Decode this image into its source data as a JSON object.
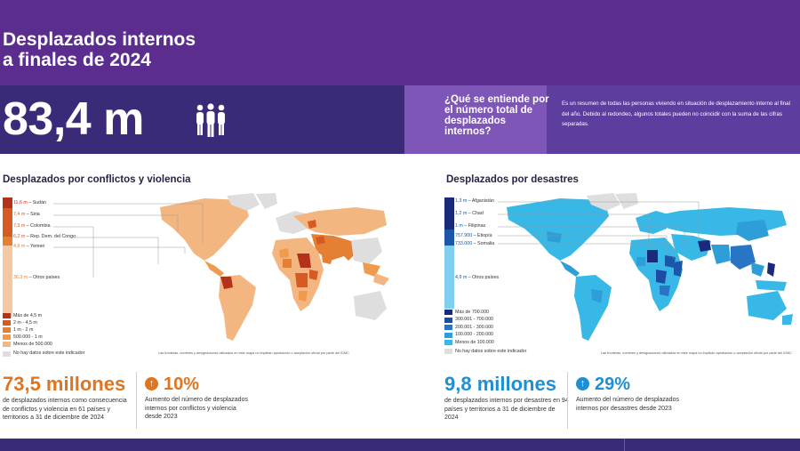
{
  "header": {
    "title_line1": "Desplazados internos",
    "title_line2": "a finales de 2024"
  },
  "total": {
    "value": "83,4 m",
    "icon": "people-group-icon"
  },
  "definition": {
    "question": "¿Qué se entiende por el número total de desplazados internos?",
    "answer": "Es un resumen de todas las personas viviendo en situación de desplazamiento interno al final del año. Debido al redondeo, algunos totales pueden no coincidir con la suma de las cifras separadas."
  },
  "conflict": {
    "title": "Desplazados por conflictos y violencia",
    "ranking": [
      {
        "value": "11,6 m",
        "country": "Sudán",
        "color": "#b5321a"
      },
      {
        "value": "7,4 m",
        "country": "Siria",
        "color": "#d65a24"
      },
      {
        "value": "7,3 m",
        "country": "Colombia",
        "color": "#d65a24"
      },
      {
        "value": "6,2 m",
        "country": "Rep. Dem. del Congo",
        "color": "#d65a24"
      },
      {
        "value": "4,8 m",
        "country": "Yemen",
        "color": "#e47f33"
      },
      {
        "value": "36,3 m",
        "country": "Otros países",
        "color": "#f6c7a3"
      }
    ],
    "legend": [
      {
        "label": "Más de 4,5 m",
        "color": "#b5321a"
      },
      {
        "label": "2 m - 4,5 m",
        "color": "#d65a24"
      },
      {
        "label": "1 m - 2 m",
        "color": "#e47f33"
      },
      {
        "label": "500.000 - 1 m",
        "color": "#f09a4d"
      },
      {
        "label": "Menos de 500.000",
        "color": "#f4b680"
      },
      {
        "label": "No hay datos sobre este indicador",
        "color": "#dedede"
      }
    ],
    "note": "Las fronteras, nombres y designaciones utilizados en este mapa no implican aprobación o aceptación oficial por parte del IDMC",
    "stat_value": "73,5 millones",
    "stat_text": "de desplazados internos como consecuencia de conflictos y violencia en 61 países y territorios a 31 de diciembre de 2024",
    "pct_value": "10%",
    "pct_text": "Aumento del número de desplazados internos por conflictos y violencia desde 2023",
    "accent": "#e0741f"
  },
  "disaster": {
    "title": "Desplazados por desastres",
    "ranking": [
      {
        "value": "1,3 m",
        "country": "Afganistán",
        "color": "#1b2a78"
      },
      {
        "value": "1,2 m",
        "country": "Chad",
        "color": "#1b2a78"
      },
      {
        "value": "1 m",
        "country": "Filipinas",
        "color": "#1b2a78"
      },
      {
        "value": "757.900",
        "country": "Etiopía",
        "color": "#1b56a8"
      },
      {
        "value": "733.000",
        "country": "Somalia",
        "color": "#1b56a8"
      },
      {
        "value": "4,9 m",
        "country": "Otros países",
        "color": "#7fd0ee"
      }
    ],
    "legend": [
      {
        "label": "Más de 700.000",
        "color": "#1b2a78"
      },
      {
        "label": "300.001 - 700.000",
        "color": "#1c4ca3"
      },
      {
        "label": "200.001 - 300.000",
        "color": "#2a74c4"
      },
      {
        "label": "100.000 - 200.000",
        "color": "#2d9ed8"
      },
      {
        "label": "Menos de 100.000",
        "color": "#38b8e6"
      },
      {
        "label": "No hay datos sobre este indicador",
        "color": "#dedede"
      }
    ],
    "note": "Las fronteras, nombres y designaciones utilizados en este mapa no implican aprobación o aceptación oficial por parte del IDMC",
    "stat_value": "9,8 millones",
    "stat_text": "de desplazados internos por desastres en 94 países y territorios a 31 de diciembre de 2024",
    "pct_value": "29%",
    "pct_text": "Aumento del número de desplazados internos por desastres desde 2023",
    "accent": "#1f8fd1"
  }
}
